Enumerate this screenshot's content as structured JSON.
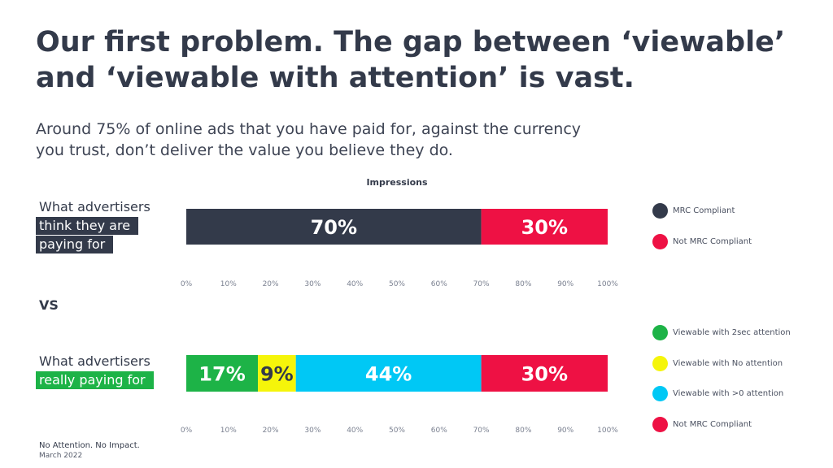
{
  "title_lines": [
    "Our first problem. The gap between ‘viewable’",
    "and ‘viewable with attention’ is vast."
  ],
  "subtitle_lines": [
    "Around 75% of online ads that you have paid for, against the currency",
    "you trust, don’t deliver the value you believe they do."
  ],
  "vs_label": "VS",
  "rows": [
    {
      "label_plain": "What advertisers",
      "label_highlight": [
        "think they are",
        "paying for"
      ],
      "highlight_color": "#333a4a"
    },
    {
      "label_plain": "What advertisers",
      "label_highlight": [
        "really paying for"
      ],
      "highlight_color": "#1db347"
    }
  ],
  "footer": {
    "line1": "No Attention. No Impact.",
    "line2": "March 2022"
  },
  "chart_data": [
    {
      "type": "bar",
      "orientation": "horizontal",
      "stacked": true,
      "title": "Impressions",
      "category": "What advertisers think they are paying for",
      "xlim": [
        0,
        100
      ],
      "ticks": [
        "0%",
        "10%",
        "20%",
        "30%",
        "40%",
        "50%",
        "60%",
        "70%",
        "80%",
        "90%",
        "100%"
      ],
      "series": [
        {
          "name": "MRC Compliant",
          "value": 70,
          "label": "70%",
          "color": "#333a4a",
          "label_color": "#ffffff"
        },
        {
          "name": "Not MRC Compliant",
          "value": 30,
          "label": "30%",
          "color": "#ee1144",
          "label_color": "#ffffff"
        }
      ],
      "legend_position": "right"
    },
    {
      "type": "bar",
      "orientation": "horizontal",
      "stacked": true,
      "category": "What advertisers really paying for",
      "xlim": [
        0,
        100
      ],
      "ticks": [
        "0%",
        "10%",
        "20%",
        "30%",
        "40%",
        "50%",
        "60%",
        "70%",
        "80%",
        "90%",
        "100%"
      ],
      "series": [
        {
          "name": "Viewable with 2sec attention",
          "value": 17,
          "label": "17%",
          "color": "#1db347",
          "label_color": "#ffffff"
        },
        {
          "name": "Viewable with No attention",
          "value": 9,
          "label": "9%",
          "color": "#f5f50a",
          "label_color": "#333a4a"
        },
        {
          "name": "Viewable with >0 attention",
          "value": 44,
          "label": "44%",
          "color": "#00c8f5",
          "label_color": "#ffffff"
        },
        {
          "name": "Not MRC Compliant",
          "value": 30,
          "label": "30%",
          "color": "#ee1144",
          "label_color": "#ffffff"
        }
      ],
      "legend_position": "right"
    }
  ]
}
